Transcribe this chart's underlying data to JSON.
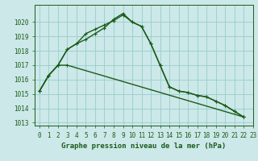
{
  "title": "Graphe pression niveau de la mer (hPa)",
  "xlim": [
    -0.5,
    23
  ],
  "ylim": [
    1012.8,
    1021.2
  ],
  "yticks": [
    1013,
    1014,
    1015,
    1016,
    1017,
    1018,
    1019,
    1020
  ],
  "xticks": [
    0,
    1,
    2,
    3,
    4,
    5,
    6,
    7,
    8,
    9,
    10,
    11,
    12,
    13,
    14,
    15,
    16,
    17,
    18,
    19,
    20,
    21,
    22,
    23
  ],
  "bg_color": "#cce8e8",
  "grid_color": "#99cccc",
  "line_color": "#1a5c1a",
  "line1_x": [
    0,
    1,
    2,
    3,
    4,
    5,
    6,
    7,
    8,
    9,
    10,
    11,
    12,
    13,
    14,
    15,
    16,
    17,
    18,
    19,
    20,
    21,
    22
  ],
  "line1_y": [
    1015.2,
    1016.3,
    1017.0,
    1018.1,
    1018.5,
    1019.2,
    1019.5,
    1019.8,
    1020.1,
    1020.5,
    1020.0,
    1019.7,
    1018.5,
    1017.0,
    1015.5,
    1015.2,
    1015.1,
    1014.9,
    1014.8,
    1014.5,
    1014.2,
    1013.8,
    1013.4
  ],
  "line2_x": [
    0,
    1,
    2,
    3,
    4,
    5,
    6,
    7,
    8,
    9,
    10,
    11,
    12,
    13,
    14,
    15,
    16,
    17,
    18,
    19,
    20,
    21,
    22
  ],
  "line2_y": [
    1015.2,
    1016.3,
    1017.0,
    1018.1,
    1018.5,
    1018.8,
    1019.2,
    1019.6,
    1020.2,
    1020.6,
    1020.0,
    1019.7,
    1018.5,
    1017.0,
    1015.5,
    1015.2,
    1015.1,
    1014.9,
    1014.8,
    1014.5,
    1014.2,
    1013.8,
    1013.4
  ],
  "line3_x": [
    0,
    1,
    2,
    3,
    22
  ],
  "line3_y": [
    1015.2,
    1016.3,
    1017.0,
    1017.0,
    1013.4
  ],
  "marker": "D",
  "markersize": 2.5,
  "linewidth": 1.0,
  "tick_fontsize": 5.5,
  "xlabel_fontsize": 6.5
}
